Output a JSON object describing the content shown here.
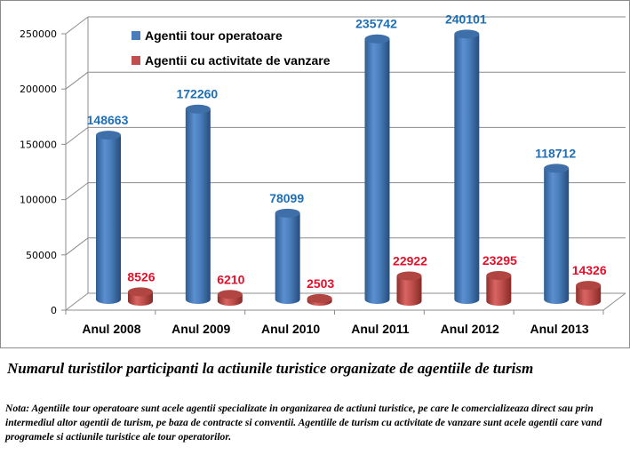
{
  "chart_data": {
    "type": "bar",
    "title": "",
    "xlabel": "",
    "ylabel": "",
    "categories": [
      "Anul 2008",
      "Anul 2009",
      "Anul 2010",
      "Anul 2011",
      "Anul 2012",
      "Anul 2013"
    ],
    "series": [
      {
        "name": "Agentii tour operatoare",
        "color": "#4a7ebb",
        "label_color": "#1f6fb5",
        "values": [
          148663,
          172260,
          78099,
          235742,
          240101,
          118712
        ]
      },
      {
        "name": "Agentii cu activitate de vanzare",
        "color": "#c0504d",
        "label_color": "#e3102a",
        "values": [
          8526,
          6210,
          2503,
          22922,
          23295,
          14326
        ]
      }
    ],
    "ylim": [
      0,
      250000
    ],
    "yticks": [
      "0",
      "50000",
      "100000",
      "150000",
      "200000",
      "250000"
    ],
    "ytick_values": [
      0,
      50000,
      100000,
      150000,
      200000,
      250000
    ],
    "grid": true,
    "legend_position": "top-left-inside",
    "style": "3d-cylinder"
  },
  "caption": "Numarul turistilor participanti la actiunile turistice organizate de agentiile de turism",
  "note": "Nota: Agentiile tour operatoare sunt acele agentii specializate in organizarea de actiuni turistice, pe care le comercializeaza direct sau prin intermediul altor agentii de turism, pe baza de contracte si conventii. Agentiile de turism cu activitate de vanzare sunt acele agentii  care vand programele si actiunile turistice ale tour operatorilor."
}
